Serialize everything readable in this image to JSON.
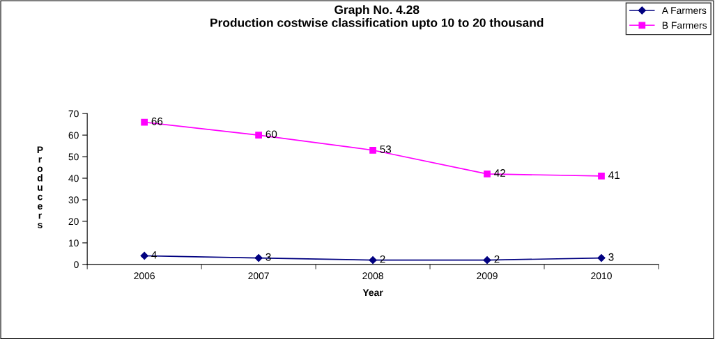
{
  "chart_data": {
    "type": "line",
    "title": "Graph No. 4.28\nProduction costwise classification upto 10 to 20 thousand",
    "xlabel": "Year",
    "ylabel": "Producers",
    "categories": [
      "2006",
      "2007",
      "2008",
      "2009",
      "2010"
    ],
    "series": [
      {
        "name": "A Farmers",
        "color": "#000080",
        "marker": "diamond",
        "values": [
          4,
          3,
          2,
          2,
          3
        ]
      },
      {
        "name": "B Farmers",
        "color": "#ff00ff",
        "marker": "square",
        "values": [
          66,
          60,
          53,
          42,
          41
        ]
      }
    ],
    "ylim": [
      0,
      70
    ],
    "yticks": [
      0,
      10,
      20,
      30,
      40,
      50,
      60,
      70
    ],
    "data_labels": true,
    "legend": "top right",
    "grid": false,
    "line_style": "solid"
  }
}
